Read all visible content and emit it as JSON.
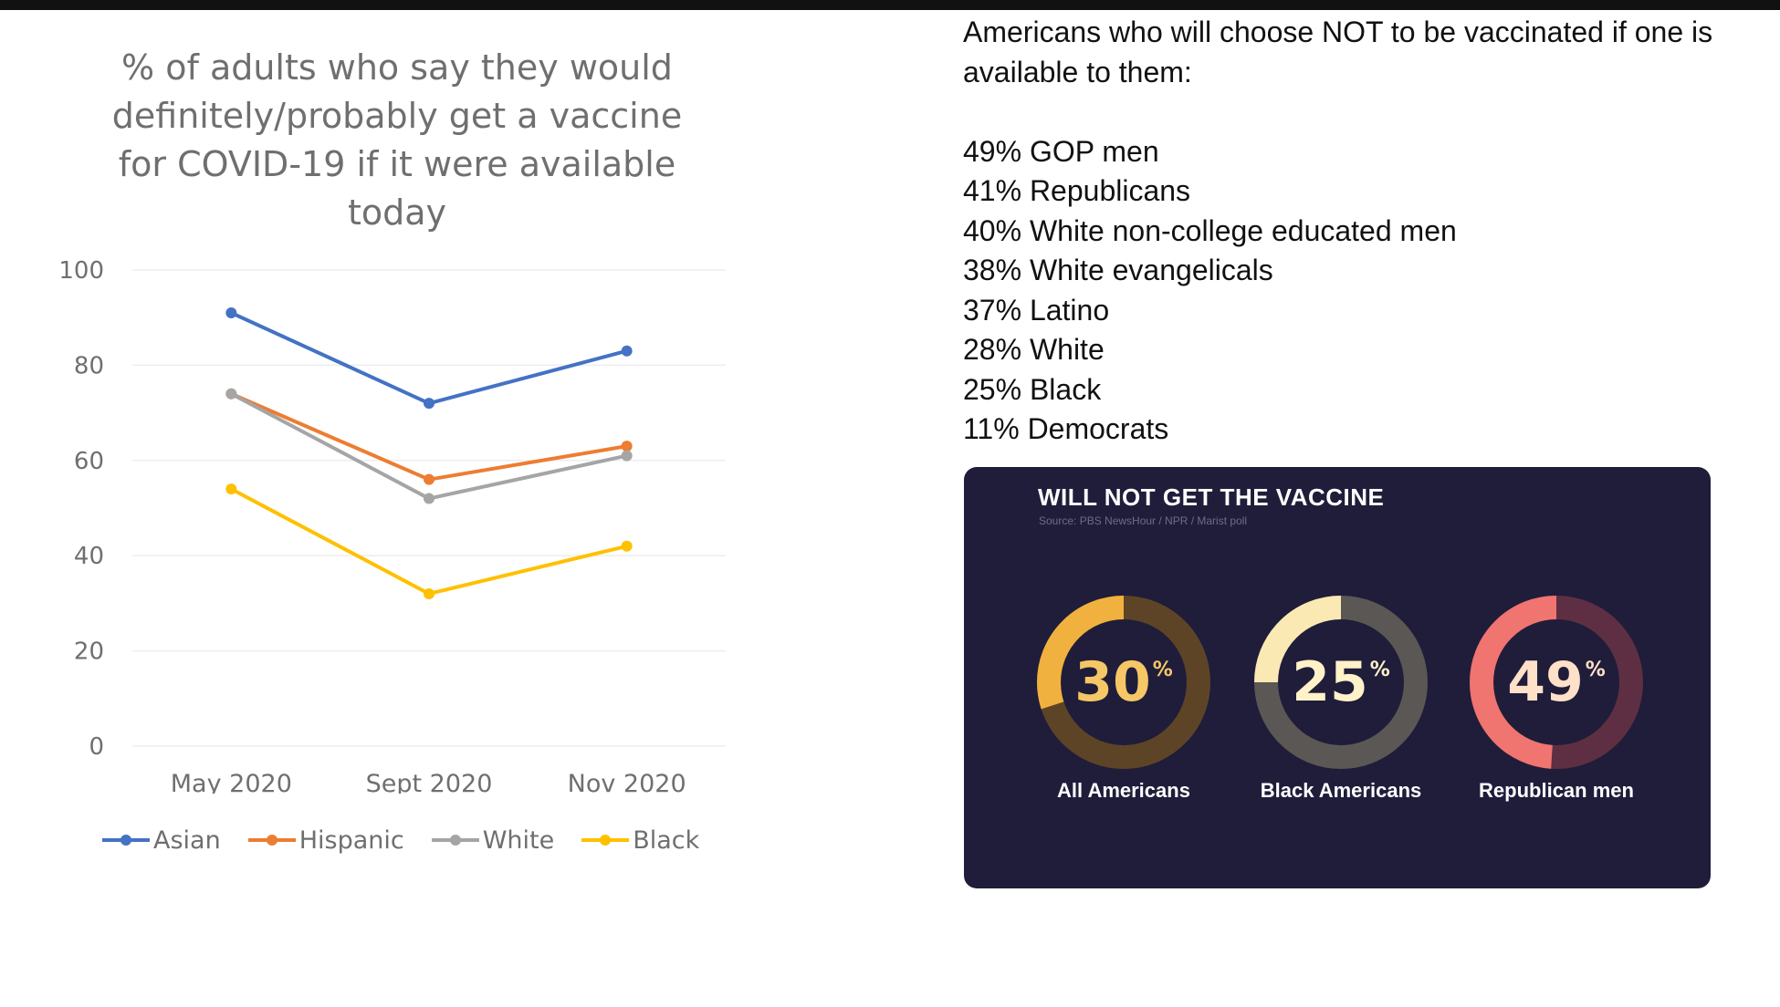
{
  "chart_data": [
    {
      "type": "line",
      "title": "% of adults who say they would definitely/probably get a vaccine for COVID-19 if it were available today",
      "categories": [
        "May 2020",
        "Sept 2020",
        "Nov 2020"
      ],
      "ylim": [
        0,
        100
      ],
      "yticks": [
        0,
        20,
        40,
        60,
        80,
        100
      ],
      "grid": true,
      "legend_position": "bottom",
      "series": [
        {
          "name": "Asian",
          "values": [
            91,
            72,
            83
          ],
          "color": "#4472c4"
        },
        {
          "name": "Hispanic",
          "values": [
            74,
            56,
            63
          ],
          "color": "#ed7d31"
        },
        {
          "name": "White",
          "values": [
            74,
            52,
            61
          ],
          "color": "#a5a5a5"
        },
        {
          "name": "Black",
          "values": [
            54,
            32,
            42
          ],
          "color": "#ffc000"
        }
      ]
    },
    {
      "type": "pie",
      "title": "WILL NOT GET THE VACCINE",
      "source": "Source: PBS NewsHour / NPR / Marist poll",
      "categories": [
        "All Americans",
        "Black Americans",
        "Republican men"
      ],
      "values": [
        30,
        25,
        49
      ],
      "unit": "%"
    }
  ],
  "stats": {
    "heading": "Americans who will choose NOT to be vaccinated if one is available to them:",
    "items": [
      "49% GOP men",
      "41% Republicans",
      "40% White non-college educated men",
      "38% White evangelicals",
      "37% Latino",
      "28% White",
      "25% Black",
      "11% Democrats"
    ]
  },
  "donut_colors": [
    {
      "fill": "#f1b13f",
      "track": "#5e4427",
      "text": "#f6c766"
    },
    {
      "fill": "#fbe9b3",
      "track": "#5b5754",
      "text": "#fff2c8"
    },
    {
      "fill": "#f0746f",
      "track": "#5e2f42",
      "text": "#ffe0c8"
    }
  ]
}
